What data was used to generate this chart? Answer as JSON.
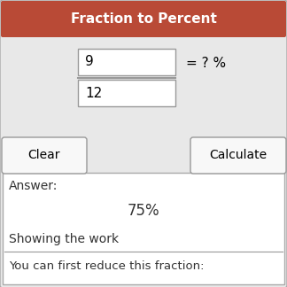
{
  "title": "Fraction to Percent",
  "title_bg_color": "#b94a36",
  "title_text_color": "#ffffff",
  "bg_color": "#e0e0e0",
  "panel_bg_color": "#ffffff",
  "border_color": "#aaaaaa",
  "outer_bg_color": "#e8e8e8",
  "numerator": "9",
  "denominator": "12",
  "equals_text": "= ? %",
  "clear_btn": "Clear",
  "calc_btn": "Calculate",
  "answer_label": "Answer:",
  "answer_value": "75%",
  "showing_work_label": "Showing the work",
  "reduce_text": "You can first reduce this fraction:",
  "input_box_color": "#ffffff",
  "input_border_color": "#999999",
  "button_bg_color": "#f8f8f8",
  "button_border_color": "#999999",
  "answer_text_color": "#333333",
  "showing_work_color": "#555555",
  "line_color": "#999999"
}
